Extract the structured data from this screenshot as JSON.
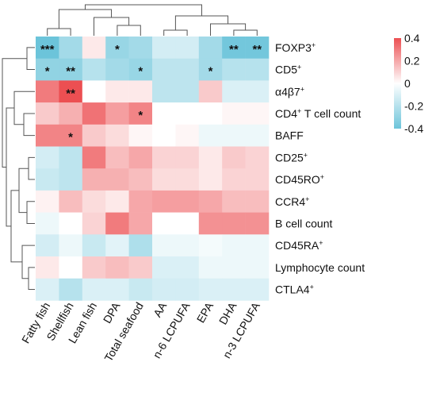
{
  "chart_data": {
    "type": "heatmap",
    "title": "",
    "columns": [
      "Fatty fish",
      "Shellfish",
      "Lean fish",
      "DPA",
      "Total seafood",
      "AA",
      "n-6 LCPUFA",
      "EPA",
      "DHA",
      "n-3 LCPUFA"
    ],
    "rows": [
      {
        "label": "FOXP3",
        "sup": "+"
      },
      {
        "label": "CD5",
        "sup": "+"
      },
      {
        "label": "α4β7",
        "sup": "+"
      },
      {
        "label": "CD4",
        "sup": "+",
        "suffix": " T cell count"
      },
      {
        "label": "BAFF",
        "sup": "",
        "suffix": ""
      },
      {
        "label": "CD25",
        "sup": "+"
      },
      {
        "label": "CD45RO",
        "sup": "+"
      },
      {
        "label": "CCR4",
        "sup": "+"
      },
      {
        "label": "B cell count",
        "sup": "",
        "suffix": ""
      },
      {
        "label": "CD45RA",
        "sup": "+"
      },
      {
        "label": "Lymphocyte count",
        "sup": "",
        "suffix": ""
      },
      {
        "label": "CTLA4",
        "sup": "+"
      }
    ],
    "values": [
      [
        -0.4,
        -0.25,
        0.05,
        -0.28,
        -0.25,
        -0.12,
        -0.12,
        -0.25,
        -0.38,
        -0.38
      ],
      [
        -0.3,
        -0.3,
        -0.2,
        -0.25,
        -0.28,
        -0.18,
        -0.18,
        -0.25,
        -0.2,
        -0.2
      ],
      [
        0.3,
        0.45,
        0.0,
        0.05,
        0.05,
        -0.18,
        -0.18,
        0.12,
        -0.1,
        -0.1
      ],
      [
        0.12,
        0.18,
        0.32,
        0.22,
        0.28,
        0.0,
        0.0,
        0.0,
        0.02,
        0.02
      ],
      [
        0.28,
        0.28,
        0.12,
        0.08,
        0.02,
        0.0,
        0.02,
        -0.05,
        -0.05,
        -0.05
      ],
      [
        -0.12,
        -0.18,
        0.3,
        0.15,
        0.2,
        0.1,
        0.1,
        0.05,
        0.12,
        0.1
      ],
      [
        -0.15,
        -0.18,
        0.18,
        0.18,
        0.15,
        0.08,
        0.08,
        0.05,
        0.1,
        0.1
      ],
      [
        0.03,
        0.15,
        0.08,
        0.05,
        0.2,
        0.22,
        0.22,
        0.2,
        0.15,
        0.15
      ],
      [
        -0.05,
        0.0,
        0.1,
        0.3,
        0.2,
        0.0,
        0.0,
        0.25,
        0.25,
        0.25
      ],
      [
        -0.12,
        -0.05,
        -0.15,
        -0.08,
        -0.22,
        -0.05,
        -0.05,
        -0.03,
        -0.05,
        -0.05
      ],
      [
        0.05,
        0.0,
        0.12,
        0.15,
        0.12,
        -0.1,
        -0.1,
        -0.05,
        -0.05,
        -0.05
      ],
      [
        -0.1,
        -0.2,
        -0.1,
        -0.1,
        -0.15,
        -0.12,
        -0.12,
        -0.1,
        -0.1,
        -0.1
      ]
    ],
    "significance": [
      [
        "***",
        "",
        "",
        "*",
        "",
        "",
        "",
        "",
        "**",
        "**"
      ],
      [
        "*",
        "**",
        "",
        "",
        "*",
        "",
        "",
        "*",
        "",
        ""
      ],
      [
        "",
        "**",
        "",
        "",
        "",
        "",
        "",
        "",
        "",
        ""
      ],
      [
        "",
        "",
        "",
        "",
        "*",
        "",
        "",
        "",
        "",
        ""
      ],
      [
        "",
        "*",
        "",
        "",
        "",
        "",
        "",
        "",
        "",
        ""
      ],
      [
        "",
        "",
        "",
        "",
        "",
        "",
        "",
        "",
        "",
        ""
      ],
      [
        "",
        "",
        "",
        "",
        "",
        "",
        "",
        "",
        "",
        ""
      ],
      [
        "",
        "",
        "",
        "",
        "",
        "",
        "",
        "",
        "",
        ""
      ],
      [
        "",
        "",
        "",
        "",
        "",
        "",
        "",
        "",
        "",
        ""
      ],
      [
        "",
        "",
        "",
        "",
        "",
        "",
        "",
        "",
        "",
        ""
      ],
      [
        "",
        "",
        "",
        "",
        "",
        "",
        "",
        "",
        "",
        ""
      ],
      [
        "",
        "",
        "",
        "",
        "",
        "",
        "",
        "",
        "",
        ""
      ]
    ],
    "colorscale": {
      "min": -0.4,
      "max": 0.4,
      "low_color": "#6cc4da",
      "mid_color": "#ffffff",
      "high_color": "#ec4f52",
      "ticks": [
        "0.4",
        "0.2",
        "0",
        "-0.2",
        "-0.4"
      ],
      "tick_values": [
        0.4,
        0.2,
        0,
        -0.2,
        -0.4
      ]
    },
    "row_dendrogram": true,
    "column_dendrogram": true,
    "grid": false,
    "legend": "top-right"
  }
}
